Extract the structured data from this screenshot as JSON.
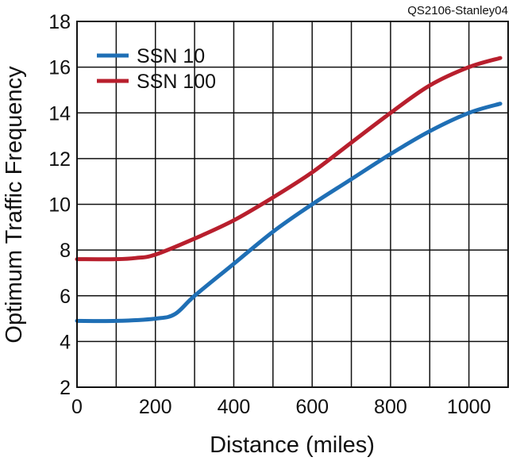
{
  "credit": "QS2106-Stanley04",
  "chart_data": {
    "type": "line",
    "title": "",
    "xlabel": "Distance (miles)",
    "ylabel": "Optimum Traffic Frequency",
    "xlim": [
      0,
      1100
    ],
    "ylim": [
      2,
      18
    ],
    "x_ticks": [
      0,
      200,
      400,
      600,
      800,
      1000
    ],
    "y_ticks": [
      2,
      4,
      6,
      8,
      10,
      12,
      14,
      16,
      18
    ],
    "grid": true,
    "legend_position": "top-left",
    "series": [
      {
        "name": "SSN 10",
        "color": "#1f6fb5",
        "points": [
          [
            0,
            4.9
          ],
          [
            100,
            4.9
          ],
          [
            200,
            5.0
          ],
          [
            250,
            5.2
          ],
          [
            300,
            6.0
          ],
          [
            400,
            7.4
          ],
          [
            500,
            8.8
          ],
          [
            600,
            10.0
          ],
          [
            700,
            11.1
          ],
          [
            800,
            12.2
          ],
          [
            900,
            13.2
          ],
          [
            1000,
            14.0
          ],
          [
            1080,
            14.4
          ]
        ]
      },
      {
        "name": "SSN 100",
        "color": "#b81f2d",
        "points": [
          [
            0,
            7.6
          ],
          [
            100,
            7.6
          ],
          [
            150,
            7.65
          ],
          [
            200,
            7.8
          ],
          [
            300,
            8.5
          ],
          [
            400,
            9.3
          ],
          [
            500,
            10.3
          ],
          [
            600,
            11.4
          ],
          [
            700,
            12.7
          ],
          [
            800,
            14.0
          ],
          [
            900,
            15.2
          ],
          [
            1000,
            16.0
          ],
          [
            1080,
            16.4
          ]
        ]
      }
    ]
  }
}
